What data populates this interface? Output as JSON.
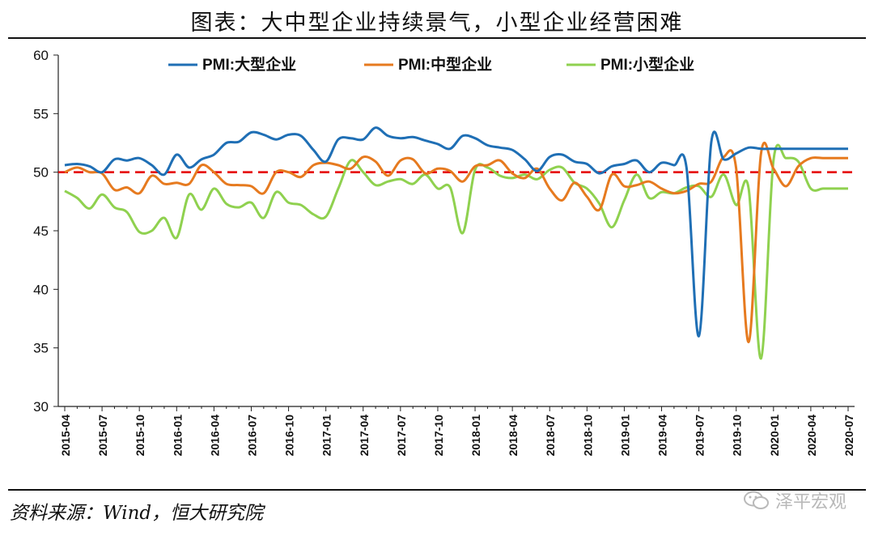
{
  "title": "图表：大中型企业持续景气，小型企业经营困难",
  "source": "资料来源：Wind，恒大研究院",
  "watermark": "泽平宏观",
  "chart_data": {
    "type": "line",
    "ylim": [
      30,
      60
    ],
    "yticks": [
      30,
      35,
      40,
      45,
      50,
      55,
      60
    ],
    "reference_line": {
      "y": 50,
      "color": "#e60000",
      "style": "dashed"
    },
    "legend_placement": "top-center",
    "x": [
      "2015-04",
      "2015-05",
      "2015-06",
      "2015-07",
      "2015-08",
      "2015-09",
      "2015-10",
      "2015-11",
      "2015-12",
      "2016-01",
      "2016-02",
      "2016-03",
      "2016-04",
      "2016-05",
      "2016-06",
      "2016-07",
      "2016-08",
      "2016-09",
      "2016-10",
      "2016-11",
      "2016-12",
      "2017-01",
      "2017-02",
      "2017-03",
      "2017-04",
      "2017-05",
      "2017-06",
      "2017-07",
      "2017-08",
      "2017-09",
      "2017-10",
      "2017-11",
      "2017-12",
      "2018-01",
      "2018-02",
      "2018-03",
      "2018-04",
      "2018-05",
      "2018-06",
      "2018-07",
      "2018-08",
      "2018-09",
      "2018-10",
      "2018-11",
      "2018-12",
      "2019-01",
      "2019-02",
      "2019-03",
      "2019-04",
      "2019-05",
      "2019-06",
      "2019-07",
      "2019-08",
      "2019-09",
      "2019-10",
      "2019-11",
      "2019-12",
      "2020-01",
      "2020-02",
      "2020-03",
      "2020-04",
      "2020-05",
      "2020-06",
      "2020-07"
    ],
    "xtick_labels": [
      "2015-04",
      "2015-07",
      "2015-10",
      "2016-01",
      "2016-04",
      "2016-07",
      "2016-10",
      "2017-01",
      "2017-04",
      "2017-07",
      "2017-10",
      "2018-01",
      "2018-04",
      "2018-07",
      "2018-10",
      "2019-01",
      "2019-04",
      "2019-07",
      "2019-10",
      "2020-01",
      "2020-04",
      "2020-07"
    ],
    "series": [
      {
        "name": "PMI:大型企业",
        "color": "#1f6fb5",
        "values": [
          50.6,
          50.7,
          50.5,
          50.0,
          51.1,
          51.0,
          51.2,
          50.6,
          49.8,
          51.5,
          50.4,
          51.1,
          51.5,
          52.5,
          52.6,
          53.4,
          53.2,
          52.8,
          53.2,
          53.1,
          51.9,
          50.9,
          52.8,
          52.9,
          52.8,
          53.8,
          53.1,
          52.9,
          53.0,
          52.7,
          52.4,
          52.0,
          53.1,
          52.9,
          52.3,
          52.1,
          51.9,
          51.1,
          50.1,
          51.3,
          51.5,
          50.9,
          50.7,
          49.9,
          50.5,
          50.7,
          51.0,
          50.0,
          50.8,
          50.6,
          50.4,
          36.0,
          52.6,
          51.1,
          51.6,
          52.1,
          52.0,
          52.0,
          52.0,
          52.0,
          52.0,
          52.0,
          52.0,
          52.0
        ]
      },
      {
        "name": "PMI:中型企业",
        "color": "#e67a1f",
        "values": [
          50.0,
          50.4,
          50.0,
          49.9,
          48.5,
          48.7,
          48.2,
          49.7,
          49.0,
          49.1,
          49.0,
          50.6,
          50.0,
          49.0,
          48.9,
          48.8,
          48.2,
          50.0,
          50.0,
          49.6,
          50.6,
          50.8,
          50.6,
          50.3,
          51.3,
          50.9,
          49.7,
          51.0,
          51.1,
          49.9,
          50.3,
          50.1,
          49.2,
          50.5,
          50.6,
          51.0,
          49.9,
          49.5,
          50.3,
          48.6,
          47.6,
          49.1,
          47.9,
          46.8,
          49.8,
          48.8,
          48.9,
          49.2,
          48.6,
          48.2,
          48.4,
          49.0,
          49.2,
          51.3,
          50.3,
          35.5,
          51.6,
          50.3,
          48.8,
          50.5,
          51.2,
          51.2,
          51.2,
          51.2
        ]
      },
      {
        "name": "PMI:小型企业",
        "color": "#8fd14f",
        "values": [
          48.4,
          47.8,
          46.9,
          48.1,
          47.0,
          46.6,
          44.9,
          45.0,
          46.1,
          44.4,
          48.1,
          46.8,
          48.6,
          47.3,
          47.0,
          47.4,
          46.1,
          48.3,
          47.4,
          47.2,
          46.4,
          46.2,
          48.6,
          51.0,
          50.0,
          48.9,
          49.2,
          49.4,
          49.0,
          49.8,
          48.6,
          48.7,
          44.8,
          50.2,
          50.4,
          49.7,
          49.5,
          49.8,
          49.4,
          50.2,
          50.4,
          49.1,
          48.6,
          47.3,
          45.3,
          47.6,
          49.8,
          47.8,
          48.3,
          48.2,
          48.7,
          48.8,
          47.9,
          49.8,
          47.2,
          48.6,
          34.1,
          51.0,
          51.2,
          50.9,
          48.6,
          48.6,
          48.6,
          48.6
        ]
      }
    ]
  }
}
